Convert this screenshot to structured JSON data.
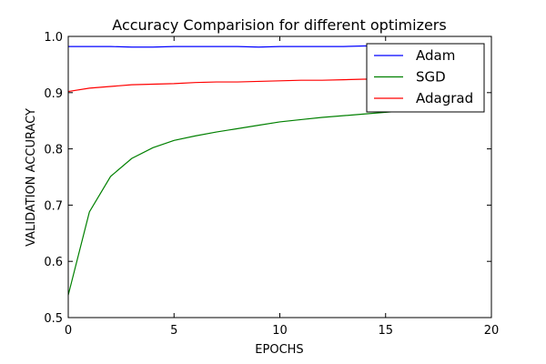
{
  "chart_data": {
    "type": "line",
    "title": "Accuracy Comparision for different optimizers",
    "xlabel": "EPOCHS",
    "ylabel": "VALIDATION ACCURACY",
    "xlim": [
      0,
      20
    ],
    "ylim": [
      0.5,
      1.0
    ],
    "xticks": [
      0,
      5,
      10,
      15,
      20
    ],
    "yticks": [
      0.5,
      0.6,
      0.7,
      0.8,
      0.9,
      1.0
    ],
    "xtick_labels": [
      "0",
      "5",
      "10",
      "15",
      "20"
    ],
    "ytick_labels": [
      "0.5",
      "0.6",
      "0.7",
      "0.8",
      "0.9",
      "1.0"
    ],
    "grid": false,
    "legend_position": "top-right",
    "x": [
      0,
      1,
      2,
      3,
      4,
      5,
      6,
      7,
      8,
      9,
      10,
      11,
      12,
      13,
      14,
      15,
      16,
      17,
      18,
      19
    ],
    "series": [
      {
        "name": "Adam",
        "color": "#0000ff",
        "values": [
          0.982,
          0.982,
          0.982,
          0.981,
          0.981,
          0.982,
          0.982,
          0.982,
          0.982,
          0.981,
          0.982,
          0.982,
          0.982,
          0.982,
          0.983,
          0.983,
          0.983,
          0.983,
          0.983,
          0.983
        ]
      },
      {
        "name": "SGD",
        "color": "#008000",
        "values": [
          0.54,
          0.688,
          0.751,
          0.783,
          0.802,
          0.815,
          0.823,
          0.83,
          0.836,
          0.842,
          0.848,
          0.852,
          0.856,
          0.859,
          0.862,
          0.865,
          0.868,
          0.87,
          0.872,
          0.874
        ]
      },
      {
        "name": "Adagrad",
        "color": "#ff0000",
        "values": [
          0.902,
          0.908,
          0.911,
          0.914,
          0.915,
          0.916,
          0.918,
          0.919,
          0.919,
          0.92,
          0.921,
          0.922,
          0.922,
          0.923,
          0.924,
          0.924,
          0.925,
          0.925,
          0.926,
          0.926
        ]
      }
    ]
  }
}
